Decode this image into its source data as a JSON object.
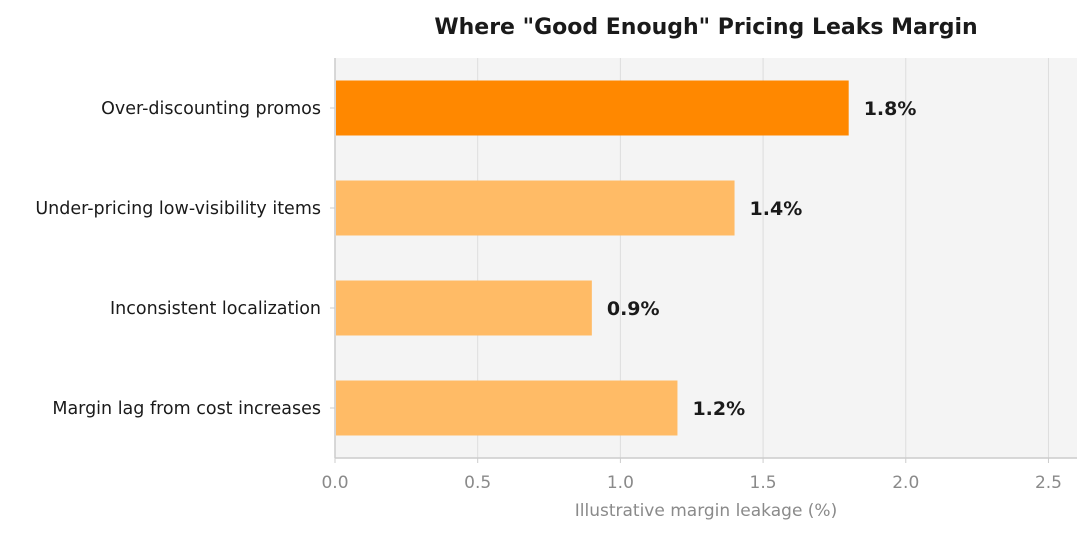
{
  "chart_data": {
    "type": "bar",
    "orientation": "horizontal",
    "title": "Where \"Good Enough\" Pricing Leaks Margin",
    "xlabel": "Illustrative margin leakage (%)",
    "ylabel": "",
    "categories": [
      "Over-discounting promos",
      "Under-pricing low-visibility items",
      "Inconsistent localization",
      "Margin lag from cost increases"
    ],
    "values": [
      1.8,
      1.4,
      0.9,
      1.2
    ],
    "data_labels": [
      "1.8%",
      "1.4%",
      "0.9%",
      "1.2%"
    ],
    "xlim": [
      0,
      2.6
    ],
    "xticks": [
      0.0,
      0.5,
      1.0,
      1.5,
      2.0,
      2.5
    ],
    "xtick_labels": [
      "0.0",
      "0.5",
      "1.0",
      "1.5",
      "2.0",
      "2.5"
    ],
    "grid": "vertical",
    "colors": {
      "highlight": "#ff8800",
      "default": "#ffbb66",
      "plot_background": "#f4f4f4",
      "grid": "#dddddd",
      "axis": "#cccccc"
    },
    "highlight_index": 0
  }
}
